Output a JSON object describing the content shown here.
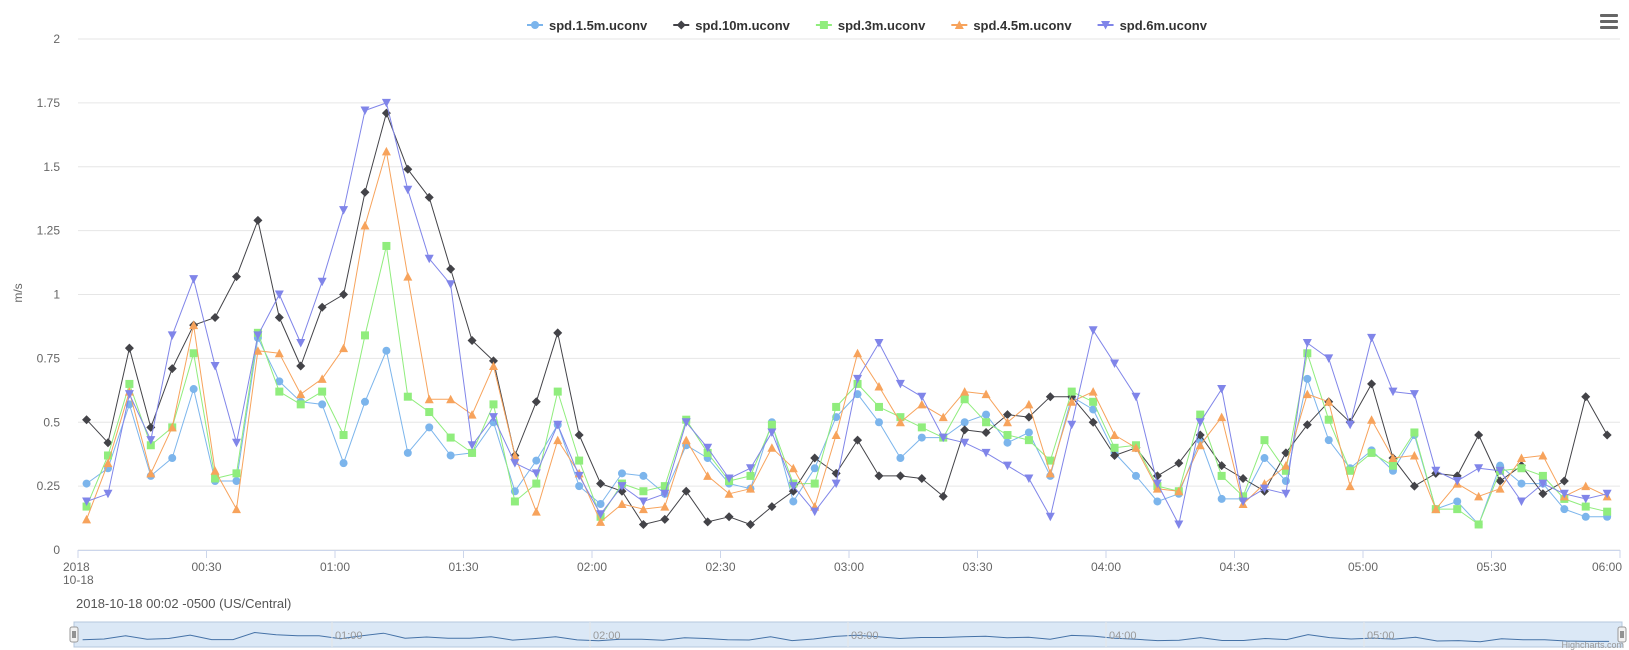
{
  "chart_data": {
    "type": "line",
    "ylabel": "m/s",
    "ylim": [
      0,
      2
    ],
    "yticks": [
      0,
      0.25,
      0.5,
      0.75,
      1,
      1.25,
      1.5,
      1.75,
      2
    ],
    "ytick_labels": [
      "0",
      "0.25",
      "0.5",
      "0.75",
      "1",
      "1.25",
      "1.5",
      "1.75",
      "2"
    ],
    "xlim_minutes": [
      0,
      360
    ],
    "xticks": [
      {
        "minute": 0,
        "label": "2018",
        "label2": "10-18"
      },
      {
        "minute": 30,
        "label": "00:30"
      },
      {
        "minute": 60,
        "label": "01:00"
      },
      {
        "minute": 90,
        "label": "01:30"
      },
      {
        "minute": 120,
        "label": "02:00"
      },
      {
        "minute": 150,
        "label": "02:30"
      },
      {
        "minute": 180,
        "label": "03:00"
      },
      {
        "minute": 210,
        "label": "03:30"
      },
      {
        "minute": 240,
        "label": "04:00"
      },
      {
        "minute": 270,
        "label": "04:30"
      },
      {
        "minute": 300,
        "label": "05:00"
      },
      {
        "minute": 330,
        "label": "05:30"
      },
      {
        "minute": 360,
        "label": "06:00"
      }
    ],
    "x_start_minute": 2,
    "x_step_minutes": 5,
    "legend_position": "top-center",
    "grid": true,
    "series": [
      {
        "name": "spd.1.5m.uconv",
        "color": "#7cb5ec",
        "marker": "circle",
        "values": [
          0.26,
          0.32,
          0.57,
          0.29,
          0.36,
          0.63,
          0.27,
          0.27,
          0.83,
          0.66,
          0.58,
          0.57,
          0.34,
          0.58,
          0.78,
          0.38,
          0.48,
          0.37,
          0.38,
          0.5,
          0.23,
          0.35,
          0.49,
          0.25,
          0.18,
          0.3,
          0.29,
          0.22,
          0.41,
          0.36,
          0.26,
          0.24,
          0.5,
          0.19,
          0.32,
          0.52,
          0.61,
          0.5,
          0.36,
          0.44,
          0.44,
          0.5,
          0.53,
          0.42,
          0.46,
          0.29,
          0.6,
          0.55,
          0.38,
          0.29,
          0.19,
          0.22,
          0.43,
          0.2,
          0.2,
          0.36,
          0.27,
          0.67,
          0.43,
          0.32,
          0.39,
          0.31,
          0.45,
          0.16,
          0.19,
          0.1,
          0.33,
          0.26,
          0.26,
          0.16,
          0.13,
          0.13
        ]
      },
      {
        "name": "spd.10m.uconv",
        "color": "#434348",
        "marker": "diamond",
        "values": [
          0.51,
          0.42,
          0.79,
          0.48,
          0.71,
          0.88,
          0.91,
          1.07,
          1.29,
          0.91,
          0.72,
          0.95,
          1.0,
          1.4,
          1.71,
          1.49,
          1.38,
          1.1,
          0.82,
          0.74,
          0.37,
          0.58,
          0.85,
          0.45,
          0.26,
          0.23,
          0.1,
          0.12,
          0.23,
          0.11,
          0.13,
          0.1,
          0.17,
          0.23,
          0.36,
          0.3,
          0.43,
          0.29,
          0.29,
          0.28,
          0.21,
          0.47,
          0.46,
          0.53,
          0.52,
          0.6,
          0.6,
          0.5,
          0.37,
          0.4,
          0.29,
          0.34,
          0.45,
          0.33,
          0.28,
          0.23,
          0.38,
          0.49,
          0.58,
          0.5,
          0.65,
          0.36,
          0.25,
          0.3,
          0.29,
          0.45,
          0.27,
          0.33,
          0.22,
          0.27,
          0.6,
          0.45
        ]
      },
      {
        "name": "spd.3m.uconv",
        "color": "#90ed7d",
        "marker": "square",
        "values": [
          0.17,
          0.37,
          0.65,
          0.41,
          0.48,
          0.77,
          0.28,
          0.3,
          0.85,
          0.62,
          0.57,
          0.62,
          0.45,
          0.84,
          1.19,
          0.6,
          0.54,
          0.44,
          0.38,
          0.57,
          0.19,
          0.26,
          0.62,
          0.35,
          0.13,
          0.26,
          0.23,
          0.25,
          0.51,
          0.38,
          0.27,
          0.29,
          0.49,
          0.26,
          0.26,
          0.56,
          0.65,
          0.56,
          0.52,
          0.48,
          0.44,
          0.59,
          0.5,
          0.45,
          0.43,
          0.35,
          0.62,
          0.58,
          0.4,
          0.41,
          0.25,
          0.23,
          0.53,
          0.29,
          0.21,
          0.43,
          0.31,
          0.77,
          0.51,
          0.31,
          0.38,
          0.33,
          0.46,
          0.16,
          0.16,
          0.1,
          0.31,
          0.32,
          0.29,
          0.2,
          0.17,
          0.15
        ]
      },
      {
        "name": "spd.4.5m.uconv",
        "color": "#f7a35c",
        "marker": "triangle",
        "values": [
          0.12,
          0.34,
          0.62,
          0.3,
          0.48,
          0.88,
          0.31,
          0.16,
          0.78,
          0.77,
          0.61,
          0.67,
          0.79,
          1.27,
          1.56,
          1.07,
          0.59,
          0.59,
          0.53,
          0.72,
          0.37,
          0.15,
          0.43,
          0.3,
          0.11,
          0.18,
          0.16,
          0.17,
          0.43,
          0.29,
          0.22,
          0.24,
          0.4,
          0.32,
          0.17,
          0.45,
          0.77,
          0.64,
          0.5,
          0.57,
          0.52,
          0.62,
          0.61,
          0.5,
          0.57,
          0.3,
          0.58,
          0.62,
          0.45,
          0.4,
          0.24,
          0.23,
          0.41,
          0.52,
          0.18,
          0.26,
          0.33,
          0.61,
          0.58,
          0.25,
          0.51,
          0.36,
          0.37,
          0.16,
          0.26,
          0.21,
          0.24,
          0.36,
          0.37,
          0.21,
          0.25,
          0.21
        ]
      },
      {
        "name": "spd.6m.uconv",
        "color": "#8085e9",
        "marker": "triangle-down",
        "values": [
          0.19,
          0.22,
          0.61,
          0.43,
          0.84,
          1.06,
          0.72,
          0.42,
          0.84,
          1.0,
          0.81,
          1.05,
          1.33,
          1.72,
          1.75,
          1.41,
          1.14,
          1.04,
          0.41,
          0.52,
          0.34,
          0.3,
          0.49,
          0.29,
          0.14,
          0.25,
          0.19,
          0.22,
          0.5,
          0.4,
          0.28,
          0.32,
          0.46,
          0.25,
          0.15,
          0.26,
          0.67,
          0.81,
          0.65,
          0.6,
          0.44,
          0.42,
          0.38,
          0.33,
          0.28,
          0.13,
          0.49,
          0.86,
          0.73,
          0.6,
          0.26,
          0.1,
          0.5,
          0.63,
          0.19,
          0.24,
          0.22,
          0.81,
          0.75,
          0.49,
          0.83,
          0.62,
          0.61,
          0.31,
          0.27,
          0.32,
          0.31,
          0.19,
          0.26,
          0.22,
          0.2,
          0.22
        ]
      }
    ]
  },
  "subtitle": "2018-10-18 00:02 -0500 (US/Central)",
  "navigator": {
    "labels": [
      {
        "minute": 60,
        "label": "01:00"
      },
      {
        "minute": 120,
        "label": "02:00"
      },
      {
        "minute": 180,
        "label": "03:00"
      },
      {
        "minute": 240,
        "label": "04:00"
      },
      {
        "minute": 300,
        "label": "05:00"
      }
    ],
    "fill_color": "#dbe8f6",
    "line_color": "#4572a7"
  },
  "credit": "Highcharts.com",
  "menu_icon": "hamburger-menu-icon"
}
